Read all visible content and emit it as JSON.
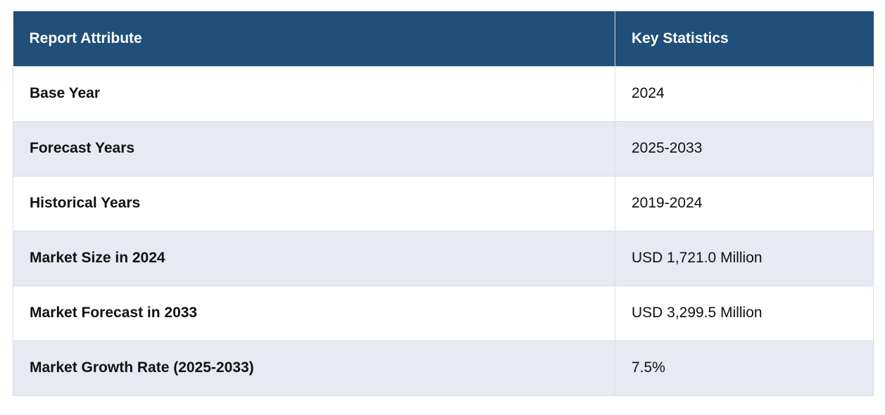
{
  "table": {
    "headers": [
      "Report Attribute",
      "Key Statistics"
    ],
    "rows": [
      {
        "attribute": "Base Year",
        "value": "2024"
      },
      {
        "attribute": "Forecast Years",
        "value": "2025-2033"
      },
      {
        "attribute": "Historical Years",
        "value": "2019-2024"
      },
      {
        "attribute": "Market Size in 2024",
        "value": "USD 1,721.0 Million"
      },
      {
        "attribute": "Market Forecast in 2033",
        "value": "USD 3,299.5 Million"
      },
      {
        "attribute": "Market Growth Rate (2025-2033)",
        "value": "7.5%"
      }
    ]
  },
  "colors": {
    "header_bg": "#204f79",
    "header_text": "#ffffff",
    "stripe_bg": "#e7e9f3",
    "border": "#d9dde6"
  }
}
